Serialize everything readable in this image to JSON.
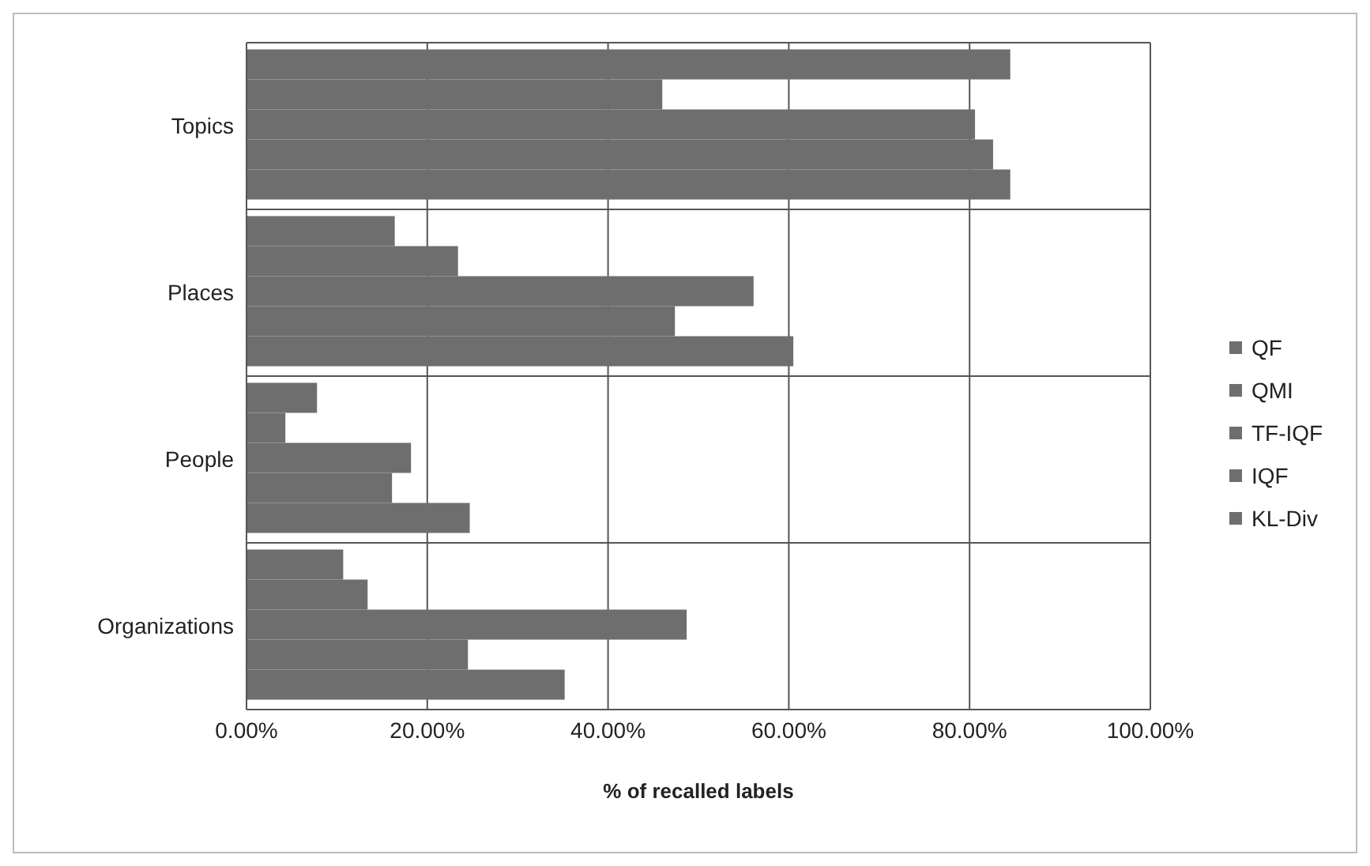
{
  "chart_data": {
    "type": "bar",
    "orientation": "horizontal",
    "xlabel": "% of recalled labels",
    "categories": [
      "Topics",
      "Places",
      "People",
      "Organizations"
    ],
    "series": [
      {
        "name": "QF",
        "color": "#6e6e6e",
        "values": [
          84.5,
          16.4,
          7.8,
          10.7
        ]
      },
      {
        "name": "QMI",
        "color": "#6e6e6e",
        "values": [
          46.0,
          23.4,
          4.3,
          13.4
        ]
      },
      {
        "name": "TF-IQF",
        "color": "#6e6e6e",
        "values": [
          80.6,
          56.1,
          18.2,
          48.7
        ]
      },
      {
        "name": "IQF",
        "color": "#6e6e6e",
        "values": [
          82.6,
          47.4,
          16.1,
          24.5
        ]
      },
      {
        "name": "KL-Div",
        "color": "#6e6e6e",
        "values": [
          84.5,
          60.5,
          24.7,
          35.2
        ]
      }
    ],
    "xlim": [
      0,
      100
    ],
    "xticks": [
      {
        "value": 0,
        "label": "0.00%"
      },
      {
        "value": 20,
        "label": "20.00%"
      },
      {
        "value": 40,
        "label": "40.00%"
      },
      {
        "value": 60,
        "label": "60.00%"
      },
      {
        "value": 80,
        "label": "80.00%"
      },
      {
        "value": 100,
        "label": "100.00%"
      }
    ],
    "grid": true,
    "legend": "right"
  }
}
